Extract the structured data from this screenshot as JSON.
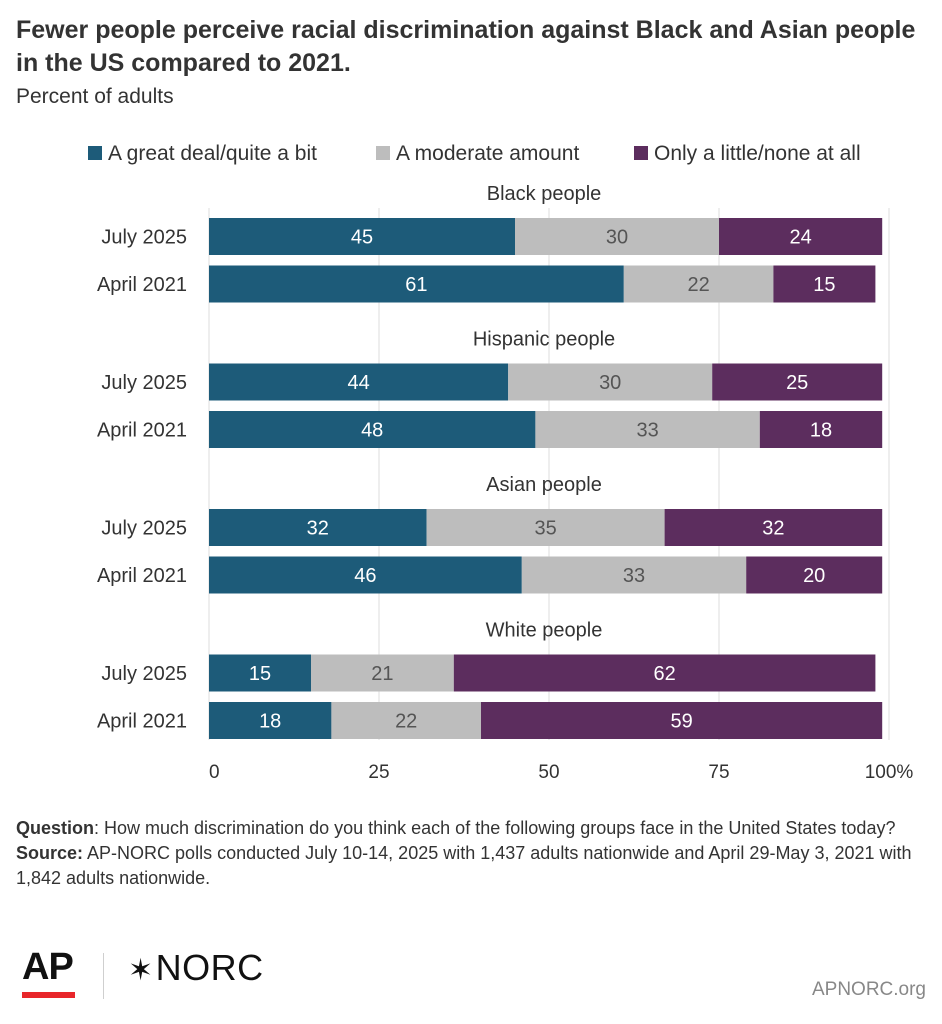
{
  "title": "Fewer people perceive racial discrimination against Black and Asian people in the US compared to 2021.",
  "subtitle": "Percent of adults",
  "chart_data": {
    "type": "bar",
    "orientation": "horizontal",
    "stacked": true,
    "legend": {
      "position": "top",
      "entries": [
        "A great deal/quite a bit",
        "A moderate amount",
        "Only a little/none at all"
      ]
    },
    "colors": [
      "#1d5b79",
      "#bdbdbd",
      "#5c2d5e"
    ],
    "x_ticks": [
      "0",
      "25",
      "50",
      "75",
      "100%"
    ],
    "xlim": [
      0,
      100
    ],
    "groups": [
      {
        "label": "Black people",
        "rows": [
          {
            "label": "July 2025",
            "values": [
              45,
              30,
              24
            ]
          },
          {
            "label": "April 2021",
            "values": [
              61,
              22,
              15
            ]
          }
        ]
      },
      {
        "label": "Hispanic people",
        "rows": [
          {
            "label": "July 2025",
            "values": [
              44,
              30,
              25
            ]
          },
          {
            "label": "April 2021",
            "values": [
              48,
              33,
              18
            ]
          }
        ]
      },
      {
        "label": "Asian people",
        "rows": [
          {
            "label": "July 2025",
            "values": [
              32,
              35,
              32
            ]
          },
          {
            "label": "April 2021",
            "values": [
              46,
              33,
              20
            ]
          }
        ]
      },
      {
        "label": "White people",
        "rows": [
          {
            "label": "July 2025",
            "values": [
              15,
              21,
              62
            ]
          },
          {
            "label": "April 2021",
            "values": [
              18,
              22,
              59
            ]
          }
        ]
      }
    ]
  },
  "notes": {
    "question_label": "Question",
    "question_text": ": How much discrimination do you think each of the following groups face in the United States today?",
    "source_label": "Source:",
    "source_text": " AP-NORC polls conducted July 10-14, 2025 with 1,437 adults nationwide and April 29-May 3, 2021 with 1,842 adults nationwide."
  },
  "footer": {
    "ap_logo": "AP",
    "norc_logo": "NORC",
    "site": "APNORC.org"
  }
}
